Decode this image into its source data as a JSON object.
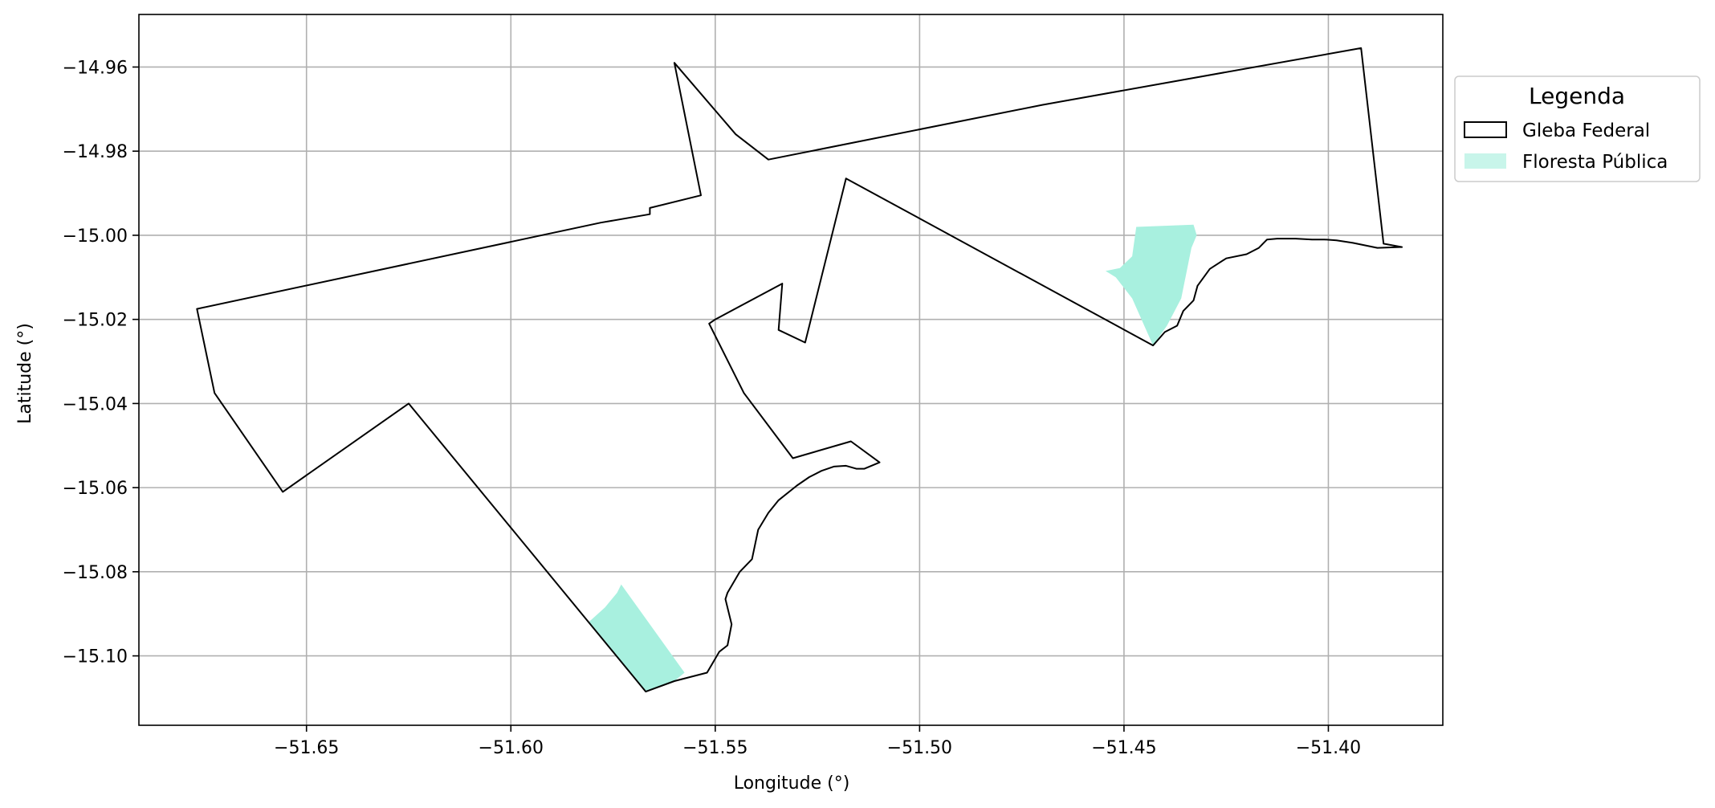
{
  "chart_data": {
    "type": "map",
    "xlabel": "Longitude (°)",
    "ylabel": "Latitude (°)",
    "xlim": [
      -51.691,
      -51.372
    ],
    "ylim": [
      -15.1165,
      -14.9475
    ],
    "x_ticks": [
      -51.65,
      -51.6,
      -51.55,
      -51.5,
      -51.45,
      -51.4
    ],
    "x_tick_labels": [
      "−51.65",
      "−51.60",
      "−51.55",
      "−51.50",
      "−51.45",
      "−51.40"
    ],
    "y_ticks": [
      -14.96,
      -14.98,
      -15.0,
      -15.02,
      -15.04,
      -15.06,
      -15.08,
      -15.1
    ],
    "y_tick_labels": [
      "−14.96",
      "−14.98",
      "−15.00",
      "−15.02",
      "−15.04",
      "−15.06",
      "−15.08",
      "−15.10"
    ],
    "grid": true,
    "legend": {
      "title": "Legenda",
      "placement": "outside-right-top",
      "entries": [
        {
          "label": "Gleba Federal",
          "style": "outline",
          "color": "#000000"
        },
        {
          "label": "Floresta Pública",
          "style": "fill",
          "color": "#a8f0df"
        }
      ]
    },
    "series": [
      {
        "name": "Gleba Federal",
        "geometry": "polygon",
        "stroke": "#000000",
        "coordinates": [
          [
            -51.6768,
            -15.0175
          ],
          [
            -51.6725,
            -15.0375
          ],
          [
            -51.6558,
            -15.061
          ],
          [
            -51.625,
            -15.04
          ],
          [
            -51.567,
            -15.1085
          ],
          [
            -51.56,
            -15.106
          ],
          [
            -51.552,
            -15.104
          ],
          [
            -51.549,
            -15.099
          ],
          [
            -51.547,
            -15.0975
          ],
          [
            -51.546,
            -15.0925
          ],
          [
            -51.5475,
            -15.0865
          ],
          [
            -51.547,
            -15.085
          ],
          [
            -51.544,
            -15.08
          ],
          [
            -51.541,
            -15.077
          ],
          [
            -51.5395,
            -15.07
          ],
          [
            -51.537,
            -15.066
          ],
          [
            -51.5345,
            -15.063
          ],
          [
            -51.53,
            -15.0595
          ],
          [
            -51.527,
            -15.0575
          ],
          [
            -51.524,
            -15.056
          ],
          [
            -51.521,
            -15.055
          ],
          [
            -51.518,
            -15.0548
          ],
          [
            -51.5155,
            -15.0555
          ],
          [
            -51.5135,
            -15.0555
          ],
          [
            -51.5098,
            -15.054
          ],
          [
            -51.5168,
            -15.049
          ],
          [
            -51.531,
            -15.053
          ],
          [
            -51.543,
            -15.0375
          ],
          [
            -51.5515,
            -15.021
          ],
          [
            -51.55,
            -15.02
          ],
          [
            -51.5336,
            -15.0115
          ],
          [
            -51.5345,
            -15.0225
          ],
          [
            -51.528,
            -15.0255
          ],
          [
            -51.518,
            -14.9865
          ],
          [
            -51.4429,
            -15.0262
          ],
          [
            -51.44,
            -15.023
          ],
          [
            -51.437,
            -15.0215
          ],
          [
            -51.4355,
            -15.018
          ],
          [
            -51.433,
            -15.0155
          ],
          [
            -51.432,
            -15.012
          ],
          [
            -51.429,
            -15.008
          ],
          [
            -51.425,
            -15.0055
          ],
          [
            -51.42,
            -15.0045
          ],
          [
            -51.417,
            -15.003
          ],
          [
            -51.415,
            -15.001
          ],
          [
            -51.4125,
            -15.0008
          ],
          [
            -51.408,
            -15.0008
          ],
          [
            -51.404,
            -15.001
          ],
          [
            -51.401,
            -15.001
          ],
          [
            -51.398,
            -15.0012
          ],
          [
            -51.394,
            -15.0018
          ],
          [
            -51.388,
            -15.003
          ],
          [
            -51.3825,
            -15.0028
          ],
          [
            -51.382,
            -15.0028
          ],
          [
            -51.3865,
            -15.002
          ],
          [
            -51.392,
            -14.9555
          ],
          [
            -51.47,
            -14.969
          ],
          [
            -51.537,
            -14.982
          ],
          [
            -51.545,
            -14.976
          ],
          [
            -51.56,
            -14.959
          ],
          [
            -51.5535,
            -14.9905
          ],
          [
            -51.566,
            -14.9935
          ],
          [
            -51.566,
            -14.995
          ],
          [
            -51.578,
            -14.997
          ],
          [
            -51.6768,
            -15.0175
          ]
        ]
      },
      {
        "name": "Floresta Pública",
        "geometry": "polygon",
        "fill": "#a8f0df",
        "coordinates": [
          [
            -51.447,
            -14.998
          ],
          [
            -51.433,
            -14.9975
          ],
          [
            -51.4322,
            -15.0
          ],
          [
            -51.4335,
            -15.003
          ],
          [
            -51.436,
            -15.015
          ],
          [
            -51.4395,
            -15.0215
          ],
          [
            -51.4429,
            -15.0262
          ],
          [
            -51.448,
            -15.015
          ],
          [
            -51.452,
            -15.01
          ],
          [
            -51.4545,
            -15.0085
          ],
          [
            -51.451,
            -15.0078
          ],
          [
            -51.448,
            -15.005
          ],
          [
            -51.447,
            -14.998
          ]
        ]
      },
      {
        "name": "Floresta Pública",
        "geometry": "polygon",
        "fill": "#a8f0df",
        "coordinates": [
          [
            -51.573,
            -15.083
          ],
          [
            -51.5575,
            -15.104
          ],
          [
            -51.56,
            -15.106
          ],
          [
            -51.567,
            -15.1085
          ],
          [
            -51.579,
            -15.094
          ],
          [
            -51.581,
            -15.092
          ],
          [
            -51.577,
            -15.0885
          ],
          [
            -51.574,
            -15.085
          ],
          [
            -51.573,
            -15.083
          ]
        ]
      }
    ]
  }
}
